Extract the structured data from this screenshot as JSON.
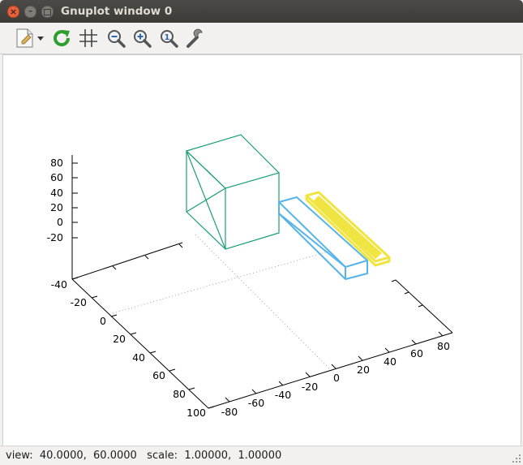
{
  "window": {
    "title": "Gnuplot window 0",
    "controls": [
      "close",
      "minimize",
      "maximize"
    ]
  },
  "toolbar": {
    "items": [
      {
        "name": "export-icon",
        "tooltip": ""
      },
      {
        "name": "replot-icon"
      },
      {
        "name": "grid-icon"
      },
      {
        "name": "zoom-out-icon"
      },
      {
        "name": "zoom-in-icon"
      },
      {
        "name": "zoom-fit-icon"
      },
      {
        "name": "settings-wrench-icon"
      }
    ]
  },
  "plot": {
    "z_ticks": [
      "80",
      "60",
      "40",
      "20",
      "0",
      "-20"
    ],
    "y_ticks": [
      "-40",
      "-20",
      "0",
      "20",
      "40",
      "60",
      "80",
      "100"
    ],
    "x_ticks": [
      "-80",
      "-60",
      "-40",
      "-20",
      "0",
      "20",
      "40",
      "60",
      "80"
    ],
    "colors": {
      "cube": "#1a9e77",
      "box_blue": "#56b4e9",
      "box_yellow": "#f0e442",
      "axes": "#000000",
      "grid": "#a0a0a0"
    }
  },
  "status": {
    "text": "view:  40.0000,  60.0000   scale:  1.00000,  1.00000"
  }
}
